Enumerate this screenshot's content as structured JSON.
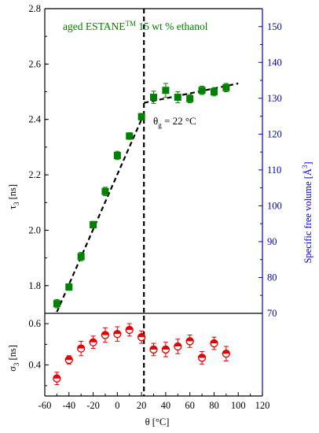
{
  "chart_data": [
    {
      "type": "scatter",
      "panel": "top",
      "title": "aged ESTANE",
      "title_sup": "TM",
      "title_suffix": " 15 wt % ethanol",
      "xlim": [
        -60,
        120
      ],
      "ylim": [
        1.7,
        2.8
      ],
      "ylabel": "τ",
      "ylabel_sub": "3",
      "ylabel_unit": " [ns]",
      "y_ticks": [
        "1.8",
        "2.0",
        "2.2",
        "2.4",
        "2.6",
        "2.8"
      ],
      "right_axis": {
        "label": "Specific free volume [Å",
        "label_sup": "3",
        "label_end": "]",
        "ylim": [
          70,
          155
        ],
        "ticks": [
          "70",
          "80",
          "90",
          "100",
          "110",
          "120",
          "130",
          "140",
          "150"
        ]
      },
      "series": [
        {
          "marker": "square",
          "color": "#008000",
          "x": [
            -50,
            -40,
            -30,
            -20,
            -10,
            0,
            10,
            20,
            30,
            40,
            50,
            60,
            70,
            80,
            90
          ],
          "y": [
            1.735,
            1.795,
            1.905,
            2.02,
            2.14,
            2.27,
            2.34,
            2.41,
            2.48,
            2.505,
            2.48,
            2.475,
            2.505,
            2.5,
            2.515
          ],
          "err": [
            0.015,
            0.012,
            0.015,
            0.012,
            0.015,
            0.015,
            0.012,
            0.012,
            0.022,
            0.025,
            0.02,
            0.015,
            0.015,
            0.015,
            0.015
          ]
        }
      ],
      "fit_lines": [
        {
          "x": [
            -50,
            22
          ],
          "y": [
            1.705,
            2.42
          ]
        },
        {
          "x": [
            22,
            100
          ],
          "y": [
            2.46,
            2.53
          ]
        }
      ],
      "vline_x": 22,
      "annotation": {
        "prefix": "θ",
        "sub": "g",
        "suffix": " = 22 °C"
      }
    },
    {
      "type": "scatter",
      "panel": "bottom",
      "xlim": [
        -60,
        120
      ],
      "ylim": [
        0.25,
        0.65
      ],
      "ylabel": "σ",
      "ylabel_sub": "3",
      "ylabel_unit": " [ns]",
      "y_ticks": [
        "0.4",
        "0.6"
      ],
      "xlabel": "θ [°C]",
      "x_ticks": [
        "-60",
        "-40",
        "-20",
        "0",
        "20",
        "40",
        "60",
        "80",
        "100",
        "120"
      ],
      "series": [
        {
          "marker": "half-filled-circle",
          "color": "#e00000",
          "x": [
            -50,
            -40,
            -30,
            -20,
            -10,
            0,
            10,
            20,
            30,
            40,
            50,
            60,
            70,
            80,
            90
          ],
          "y": [
            0.335,
            0.425,
            0.48,
            0.51,
            0.545,
            0.55,
            0.57,
            0.535,
            0.475,
            0.475,
            0.49,
            0.515,
            0.435,
            0.505,
            0.455
          ],
          "err": [
            0.03,
            0.02,
            0.035,
            0.03,
            0.035,
            0.035,
            0.03,
            0.03,
            0.03,
            0.035,
            0.035,
            0.03,
            0.03,
            0.03,
            0.035
          ]
        }
      ]
    }
  ]
}
